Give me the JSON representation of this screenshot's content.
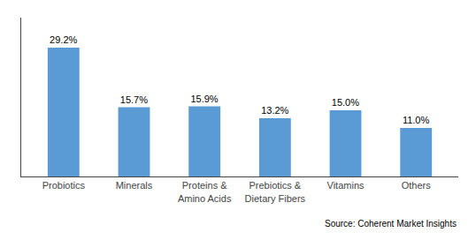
{
  "chart_data": {
    "type": "bar",
    "categories": [
      "Probiotics",
      "Minerals",
      "Proteins &\nAmino Acids",
      "Prebiotics &\nDietary Fibers",
      "Vitamins",
      "Others"
    ],
    "values": [
      29.2,
      15.7,
      15.9,
      13.2,
      15.0,
      11.0
    ],
    "value_labels": [
      "29.2%",
      "15.7%",
      "15.9%",
      "13.2%",
      "15.0%",
      "11.0%"
    ],
    "data_labels": true,
    "color": "#5B9BD5",
    "ylim": [
      0,
      36
    ],
    "tick_labels": "x",
    "grid": false,
    "annotation": "Source: Coherent Market Insights"
  }
}
